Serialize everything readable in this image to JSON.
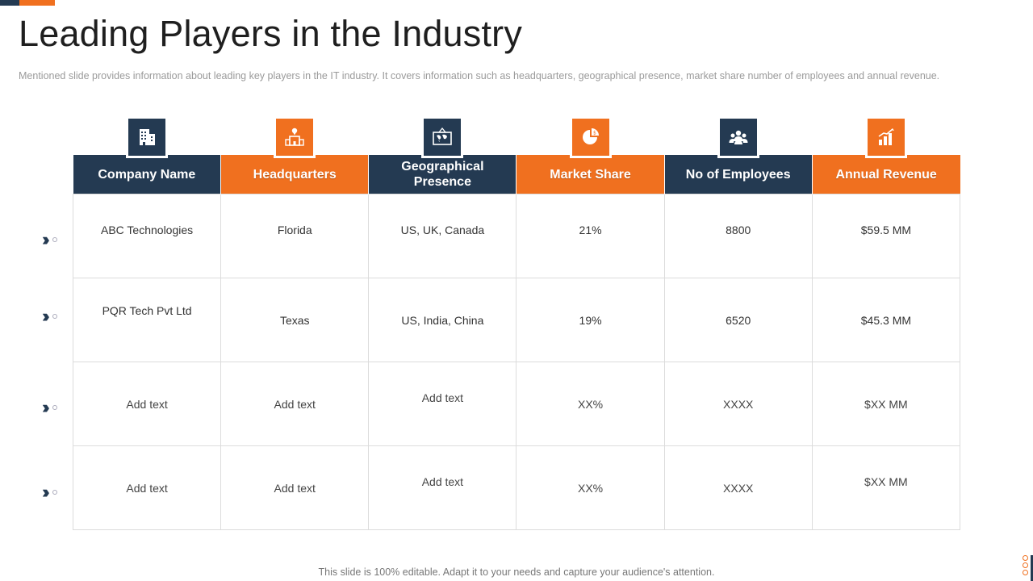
{
  "slide": {
    "title": "Leading Players in the Industry",
    "subtitle": "Mentioned slide provides  information  about leading  key players in the IT  industry.  It covers  information  such as headquarters,  geographical  presence,  market share number  of employees and  annual revenue.",
    "footer": "This slide is 100% editable. Adapt it to your needs and capture your audience's attention."
  },
  "colors": {
    "navy": "#243a52",
    "orange": "#f0701f"
  },
  "table": {
    "columns": [
      {
        "label": "Company Name",
        "icon": "building-icon",
        "color": "navy"
      },
      {
        "label": "Headquarters",
        "icon": "headquarters-location-icon",
        "color": "orange"
      },
      {
        "label": "Geographical Presence",
        "icon": "world-map-icon",
        "color": "navy"
      },
      {
        "label": "Market Share",
        "icon": "pie-chart-icon",
        "color": "orange"
      },
      {
        "label": "No of Employees",
        "icon": "people-group-icon",
        "color": "navy"
      },
      {
        "label": "Annual Revenue",
        "icon": "growth-bar-chart-icon",
        "color": "orange"
      }
    ],
    "rows": [
      [
        "ABC Technologies",
        "Florida",
        "US, UK, Canada",
        "21%",
        "8800",
        "$59.5  MM"
      ],
      [
        "PQR Tech  Pvt Ltd",
        "Texas",
        "US, India, China",
        "19%",
        "6520",
        "$45.3  MM"
      ],
      [
        "Add text",
        "Add text",
        "Add text",
        "XX%",
        "XXXX",
        "$XX  MM"
      ],
      [
        "Add text",
        "Add text",
        "Add text",
        "XX%",
        "XXXX",
        "$XX  MM"
      ]
    ]
  }
}
